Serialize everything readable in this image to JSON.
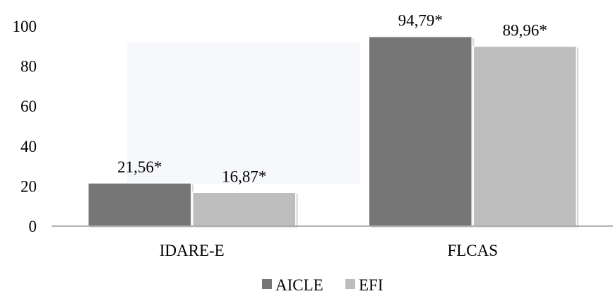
{
  "chart_data": {
    "type": "bar",
    "categories": [
      "IDARE-E",
      "FLCAS"
    ],
    "series": [
      {
        "name": "AICLE",
        "values": [
          21.56,
          94.79
        ],
        "labels": [
          "21,56*",
          "94,79*"
        ],
        "color": "#767676"
      },
      {
        "name": "EFI",
        "values": [
          16.87,
          89.96
        ],
        "labels": [
          "16,87*",
          "89,96*"
        ],
        "color": "#bdbdbd"
      }
    ],
    "yticks": [
      "0",
      "20",
      "40",
      "60",
      "80",
      "100"
    ],
    "ylim": [
      0,
      100
    ],
    "title": "",
    "xlabel": "",
    "ylabel": "",
    "grid": false,
    "legend_position": "bottom"
  }
}
